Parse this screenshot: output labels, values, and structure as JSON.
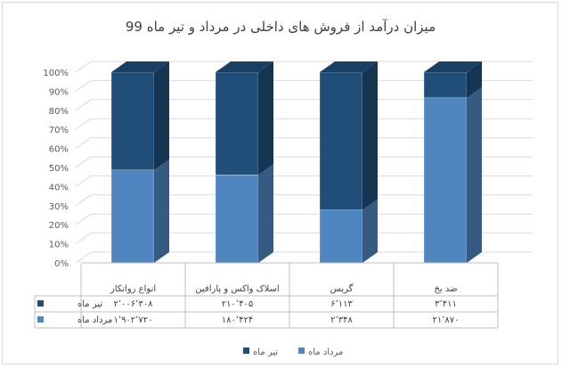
{
  "chart_data": {
    "type": "bar",
    "stacked": "percent",
    "title": "میزان درآمد از فروش های داخلی در مرداد و تیر ماه 99",
    "categories": [
      "انواع روانکار",
      "اسلاک واکس و پارافین",
      "گریس",
      "ضد یخ"
    ],
    "series": [
      {
        "name": "مرداد ماه",
        "color": "#4f86c0",
        "values": [
          1902720,
          180424,
          2348,
          21870
        ],
        "labels": [
          "۱٬۹۰۲٬۷۲۰",
          "۱۸۰٬۴۲۴",
          "۲٬۳۴۸",
          "۲۱٬۸۷۰"
        ]
      },
      {
        "name": "تیر ماه",
        "color": "#1f4e79",
        "values": [
          2006308,
          210405,
          6113,
          3411
        ],
        "labels": [
          "۲٬۰۰۶٬۳۰۸",
          "۲۱۰٬۴۰۵",
          "۶٬۱۱۳",
          "۳٬۴۱۱"
        ]
      }
    ],
    "yticks": [
      "0%",
      "10%",
      "20%",
      "30%",
      "40%",
      "50%",
      "60%",
      "70%",
      "80%",
      "90%",
      "100%"
    ],
    "ylim": [
      0,
      100
    ],
    "grid": true,
    "legend": "bottom",
    "data_table": true
  }
}
